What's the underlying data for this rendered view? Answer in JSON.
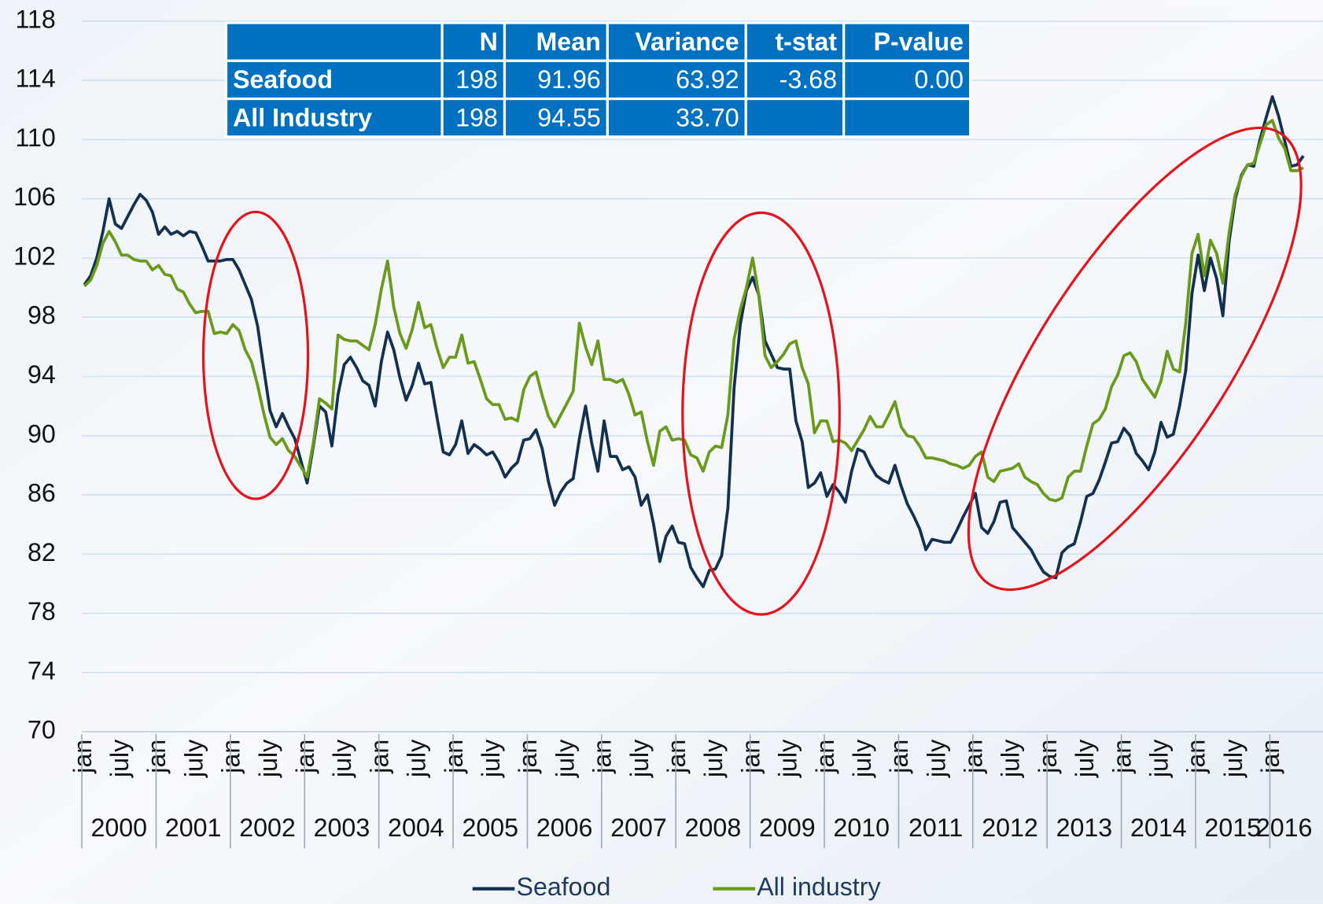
{
  "chart_data": {
    "type": "line",
    "categories": [
      "jan",
      null,
      null,
      null,
      null,
      null,
      "july",
      null,
      null,
      null,
      null,
      null,
      "jan",
      null,
      null,
      null,
      null,
      null,
      "july",
      null,
      null,
      null,
      null,
      null,
      "jan",
      null,
      null,
      null,
      null,
      null,
      "july",
      null,
      null,
      null,
      null,
      null,
      "jan",
      null,
      null,
      null,
      null,
      null,
      "july",
      null,
      null,
      null,
      null,
      null,
      "jan",
      null,
      null,
      null,
      null,
      null,
      "july",
      null,
      null,
      null,
      null,
      null,
      "jan",
      null,
      null,
      null,
      null,
      null,
      "july",
      null,
      null,
      null,
      null,
      null,
      "jan",
      null,
      null,
      null,
      null,
      null,
      "july",
      null,
      null,
      null,
      null,
      null,
      "jan",
      null,
      null,
      null,
      null,
      null,
      "july",
      null,
      null,
      null,
      null,
      null,
      "jan",
      null,
      null,
      null,
      null,
      null,
      "july",
      null,
      null,
      null,
      null,
      null,
      "jan",
      null,
      null,
      null,
      null,
      null,
      "july",
      null,
      null,
      null,
      null,
      null,
      "jan",
      null,
      null,
      null,
      null,
      null,
      "july",
      null,
      null,
      null,
      null,
      null,
      "jan",
      null,
      null,
      null,
      null,
      null,
      "july",
      null,
      null,
      null,
      null,
      null,
      "jan",
      null,
      null,
      null,
      null,
      null,
      "july",
      null,
      null,
      null,
      null,
      null,
      "jan",
      null,
      null,
      null,
      null,
      null,
      "july",
      null,
      null,
      null,
      null,
      null,
      "jan",
      null,
      null,
      null,
      null,
      null,
      "july",
      null,
      null,
      null,
      null,
      null,
      "jan",
      null,
      null,
      null,
      null,
      null,
      "july",
      null,
      null,
      null,
      null,
      null,
      "jan",
      null,
      null,
      null,
      null,
      null
    ],
    "years": [
      "2000",
      "2001",
      "2002",
      "2003",
      "2004",
      "2005",
      "2006",
      "2007",
      "2008",
      "2009",
      "2010",
      "2011",
      "2012",
      "2013",
      "2014",
      "2015",
      "2016"
    ],
    "series": [
      {
        "name": "Seafood",
        "color": "#14304f",
        "values": [
          100.2,
          100.8,
          102,
          103.8,
          106,
          104.3,
          104,
          104.8,
          105.6,
          106.3,
          105.9,
          105.1,
          103.6,
          104.1,
          103.6,
          103.8,
          103.5,
          103.8,
          103.7,
          102.8,
          101.8,
          101.8,
          101.8,
          101.9,
          101.9,
          101.2,
          100.2,
          99.2,
          97.4,
          94.5,
          91.7,
          90.6,
          91.5,
          90.6,
          89.8,
          88.3,
          86.8,
          89.3,
          92,
          91.6,
          89.3,
          92.8,
          94.8,
          95.3,
          94.6,
          93.7,
          93.4,
          92,
          95,
          97,
          95.8,
          93.9,
          92.4,
          93.4,
          94.9,
          93.5,
          93.6,
          91.2,
          88.9,
          88.7,
          89.4,
          91,
          88.8,
          89.4,
          89.1,
          88.7,
          88.9,
          88.2,
          87.2,
          87.8,
          88.2,
          89.7,
          89.8,
          90.4,
          89.1,
          86.9,
          85.3,
          86.2,
          86.8,
          87.1,
          89.8,
          92,
          89.5,
          87.6,
          91,
          88.6,
          88.6,
          87.7,
          87.9,
          87.2,
          85.3,
          86,
          84,
          81.5,
          83.2,
          83.9,
          82.8,
          82.7,
          81.1,
          80.4,
          79.8,
          80.9,
          81,
          81.9,
          85.1,
          93.2,
          97.5,
          99.8,
          100.7,
          99.5,
          96.4,
          95.5,
          94.6,
          94.5,
          94.5,
          91,
          89.6,
          86.5,
          86.8,
          87.5,
          85.9,
          86.7,
          86.2,
          85.5,
          87.6,
          89.1,
          88.9,
          88,
          87.3,
          87,
          86.8,
          88,
          86.6,
          85.4,
          84.6,
          83.7,
          82.3,
          83,
          82.9,
          82.8,
          82.8,
          83.6,
          84.5,
          85.3,
          86.1,
          83.8,
          83.4,
          84.2,
          85.5,
          85.6,
          83.8,
          83.3,
          82.8,
          82.3,
          81.5,
          80.8,
          80.5,
          80.4,
          82.1,
          82.5,
          82.7,
          84.2,
          85.9,
          86.1,
          87,
          88.2,
          89.5,
          89.6,
          90.5,
          90,
          88.8,
          88.3,
          87.7,
          88.9,
          90.9,
          89.9,
          90.1,
          92,
          94.4,
          99.6,
          102.2,
          99.8,
          102,
          100.6,
          98.1,
          103.1,
          106,
          107.6,
          108.3,
          108.2,
          110,
          111.5,
          112.9,
          111.6,
          109.9,
          108.2,
          108.3,
          108.9
        ]
      },
      {
        "name": "All industry",
        "color": "#6a9a1c",
        "values": [
          100.1,
          100.5,
          101.5,
          103,
          103.8,
          103.1,
          102.2,
          102.2,
          101.9,
          101.8,
          101.8,
          101.2,
          101.5,
          100.9,
          100.8,
          99.9,
          99.7,
          98.9,
          98.3,
          98.4,
          98.4,
          96.9,
          97,
          96.9,
          97.5,
          97.1,
          95.8,
          95,
          93.4,
          91.5,
          89.9,
          89.4,
          89.8,
          89,
          88.6,
          87.9,
          87.2,
          89.5,
          92.5,
          92.2,
          91.8,
          96.8,
          96.5,
          96.4,
          96.4,
          96.1,
          95.8,
          97.5,
          99.9,
          101.8,
          98.7,
          96.9,
          95.9,
          97.2,
          99,
          97.3,
          97.5,
          95.9,
          94.6,
          95.3,
          95.3,
          96.8,
          94.9,
          95,
          93.8,
          92.5,
          92.1,
          92.1,
          91.1,
          91.2,
          91,
          93.1,
          94,
          94.3,
          92.7,
          91.3,
          90.6,
          91.4,
          92.2,
          93,
          97.6,
          96,
          94.8,
          96.4,
          93.8,
          93.8,
          93.6,
          93.8,
          92.8,
          91.4,
          91.6,
          89.6,
          88,
          90.3,
          90.6,
          89.7,
          89.8,
          89.7,
          88.7,
          88.5,
          87.6,
          88.9,
          89.3,
          89.2,
          91.4,
          96.5,
          98.5,
          100,
          102,
          99.5,
          95.4,
          94.6,
          95,
          95.5,
          96.2,
          96.4,
          94.6,
          93.5,
          90.2,
          91,
          91,
          89.6,
          89.7,
          89.5,
          89,
          89.7,
          90.4,
          91.3,
          90.6,
          90.6,
          91.4,
          92.3,
          90.6,
          90,
          89.9,
          89.3,
          88.5,
          88.5,
          88.4,
          88.3,
          88.1,
          88,
          87.8,
          88,
          88.6,
          88.9,
          87.2,
          86.9,
          87.6,
          87.7,
          87.8,
          88.1,
          87.2,
          86.9,
          86.7,
          86.1,
          85.7,
          85.6,
          85.8,
          87.2,
          87.6,
          87.6,
          89.3,
          90.8,
          91.1,
          91.8,
          93.3,
          94.1,
          95.4,
          95.6,
          95,
          93.8,
          93.2,
          92.6,
          93.7,
          95.7,
          94.5,
          94.3,
          97.6,
          102.3,
          103.6,
          100.8,
          103.2,
          102.3,
          100.3,
          103.7,
          106.3,
          107.5,
          108.3,
          108.4,
          109.7,
          111,
          111.3,
          110.1,
          109.4,
          107.9,
          107.9,
          108.1
        ]
      }
    ],
    "ylim": [
      70,
      118
    ],
    "yticks": [
      70,
      74,
      78,
      82,
      86,
      90,
      94,
      98,
      102,
      106,
      110,
      114,
      118
    ],
    "grid": true,
    "legend": "bottom",
    "table": {
      "columns": [
        "N",
        "Mean",
        "Variance",
        "t-stat",
        "P-value"
      ],
      "rows": [
        {
          "label": "Seafood",
          "cells": [
            "198",
            "91.96",
            "63.92",
            "-3.68",
            "0.00"
          ]
        },
        {
          "label": "All Industry",
          "cells": [
            "198",
            "94.55",
            "33.70",
            null,
            null
          ]
        }
      ]
    }
  }
}
